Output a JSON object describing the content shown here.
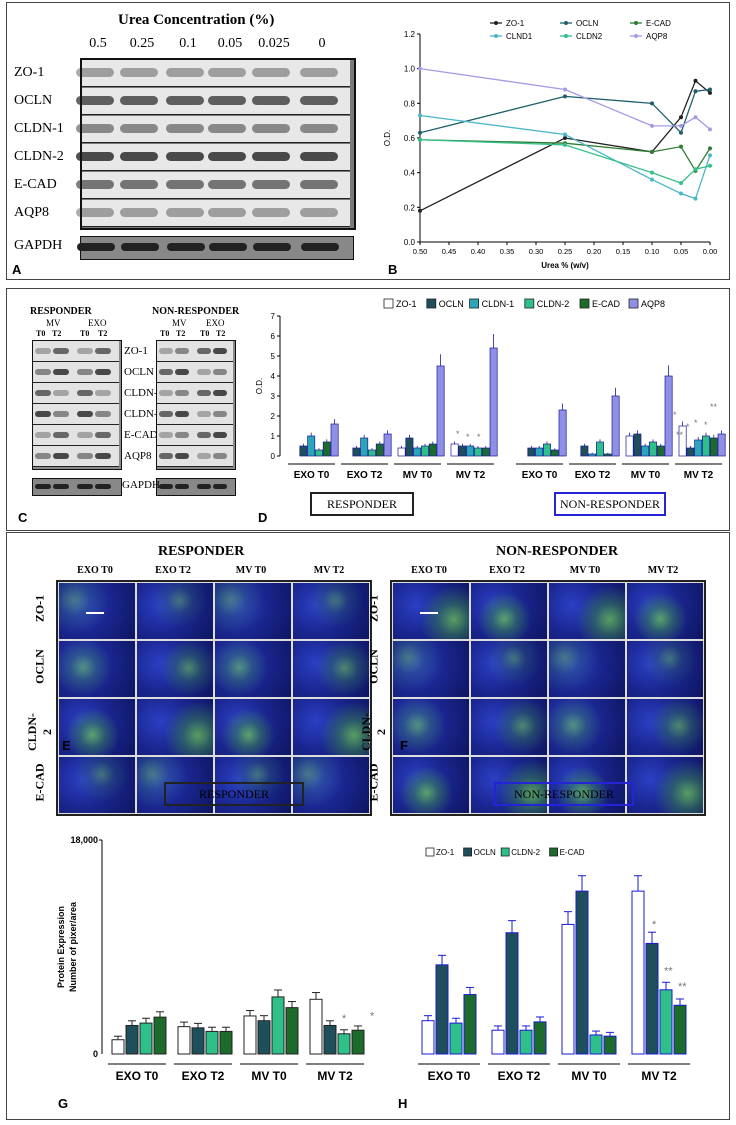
{
  "panels": {
    "A": "A",
    "B": "B",
    "C": "C",
    "D": "D",
    "E": "E",
    "F": "F",
    "G": "G",
    "H": "H"
  },
  "panelA": {
    "title": "Urea Concentration (%)",
    "concentrations": [
      "0.5",
      "0.25",
      "0.1",
      "0.05",
      "0.025",
      "0"
    ],
    "rows": [
      "ZO-1",
      "OCLN",
      "CLDN-1",
      "CLDN-2",
      "E-CAD",
      "AQP8"
    ],
    "loading": "GAPDH"
  },
  "panelB": {
    "chart_data": {
      "type": "line",
      "xlabel": "Urea % (w/v)",
      "ylabel": "O.D.",
      "xlim": [
        0.5,
        0.0
      ],
      "ylim": [
        0.0,
        1.2
      ],
      "xticks": [
        "0.50",
        "0.45",
        "0.40",
        "0.35",
        "0.30",
        "0.25",
        "0.20",
        "0.15",
        "0.10",
        "0.05",
        "0.00"
      ],
      "yticks": [
        "0.0",
        "0.2",
        "0.4",
        "0.6",
        "0.8",
        "1.0",
        "1.2"
      ],
      "x": [
        0.5,
        0.25,
        0.1,
        0.05,
        0.025,
        0.0
      ],
      "series": [
        {
          "name": "ZO-1",
          "color": "#222222",
          "values": [
            0.18,
            0.6,
            0.52,
            0.72,
            0.93,
            0.86
          ]
        },
        {
          "name": "OCLN",
          "color": "#1f5f6b",
          "values": [
            0.63,
            0.84,
            0.8,
            0.63,
            0.87,
            0.88
          ]
        },
        {
          "name": "E-CAD",
          "color": "#2e7d32",
          "values": [
            0.59,
            0.57,
            0.52,
            0.55,
            0.41,
            0.54
          ]
        },
        {
          "name": "CLND1",
          "color": "#4ab6c8",
          "values": [
            0.73,
            0.62,
            0.36,
            0.28,
            0.25,
            0.5
          ]
        },
        {
          "name": "CLDN2",
          "color": "#35c08a",
          "values": [
            0.59,
            0.56,
            0.4,
            0.34,
            0.42,
            0.44
          ]
        },
        {
          "name": "AQP8",
          "color": "#a59be6",
          "values": [
            1.0,
            0.88,
            0.67,
            0.67,
            0.72,
            0.65
          ]
        }
      ],
      "legend": "top"
    }
  },
  "panelC": {
    "responder": "RESPONDER",
    "nonresponder": "NON-RESPONDER",
    "mv": "MV",
    "exo": "EXO",
    "t0": "T0",
    "t2": "T2",
    "rows": [
      "ZO-1",
      "OCLN",
      "CLDN-1",
      "CLDN-2",
      "E-CAD",
      "AQP8"
    ],
    "loading": "GAPDH"
  },
  "panelD": {
    "chart_data": {
      "type": "bar",
      "ylabel": "O.D.",
      "ylim": [
        0,
        7
      ],
      "yticks": [
        "0",
        "1",
        "2",
        "3",
        "4",
        "5",
        "6",
        "7"
      ],
      "legend_items": [
        "ZO-1",
        "OCLN",
        "CLDN-1",
        "CLDN-2",
        "E-CAD",
        "AQP8"
      ],
      "colors": [
        "#ffffff",
        "#1f4f5a",
        "#2aa6b8",
        "#2fc08a",
        "#1c6b2a",
        "#8f8fe6"
      ],
      "groups": [
        "EXO T0",
        "EXO T2",
        "MV T0",
        "MV T2"
      ],
      "responder": [
        [
          0,
          0.5,
          1.0,
          0.3,
          0.7,
          1.6
        ],
        [
          0,
          0.4,
          0.9,
          0.3,
          0.6,
          1.1
        ],
        [
          0.4,
          0.9,
          0.4,
          0.5,
          0.6,
          4.5
        ],
        [
          0.6,
          0.5,
          0.5,
          0.4,
          0.4,
          5.4
        ]
      ],
      "nonresponder": [
        [
          0,
          0.4,
          0.4,
          0.6,
          0.3,
          2.3
        ],
        [
          0,
          0.5,
          0.1,
          0.7,
          0.1,
          3.0
        ],
        [
          1.0,
          1.1,
          0.5,
          0.7,
          0.5,
          4.0
        ],
        [
          1.5,
          0.4,
          0.8,
          1.0,
          0.9,
          1.1
        ]
      ],
      "responder_label": "RESPONDER",
      "nonresponder_label": "NON-RESPONDER",
      "stars_r": [
        "*",
        "*",
        "*"
      ],
      "stars_n": [
        "*",
        "**",
        "*",
        "*",
        "*",
        "**"
      ]
    }
  },
  "panelEF": {
    "responder": "RESPONDER",
    "nonresponder": "NON-RESPONDER",
    "cols": [
      "EXO T0",
      "EXO T2",
      "MV T0",
      "MV T2"
    ],
    "rows": [
      "ZO-1",
      "OCLN",
      "CLDN-2",
      "E-CAD"
    ]
  },
  "panelGH": {
    "chart_data": {
      "type": "bar",
      "ylabel1": "Protein Expression",
      "ylabel2": "Number of pixer/area",
      "ylim": [
        0,
        18000
      ],
      "ytop": "18,000",
      "yzero": "0",
      "legend_items": [
        "ZO-1",
        "OCLN",
        "CLDN-2",
        "E-CAD"
      ],
      "colors": [
        "#ffffff",
        "#1f4f5a",
        "#2fc08a",
        "#1c6b2a"
      ],
      "groups": [
        "EXO T0",
        "EXO T2",
        "MV T0",
        "MV T2"
      ],
      "responder": [
        [
          1200,
          2400,
          2600,
          3100
        ],
        [
          2300,
          2200,
          1900,
          1900
        ],
        [
          3200,
          2800,
          4800,
          3900
        ],
        [
          4600,
          2400,
          1700,
          2000
        ]
      ],
      "nonresponder": [
        [
          2800,
          7500,
          2600,
          5000
        ],
        [
          2000,
          10200,
          2000,
          2700
        ],
        [
          10900,
          13700,
          1600,
          1500
        ],
        [
          13700,
          9300,
          5400,
          4100
        ]
      ],
      "responder_label": "RESPONDER",
      "nonresponder_label": "NON-RESPONDER",
      "stars_r": [
        "*",
        "*"
      ],
      "stars_n": [
        "*",
        "**",
        "**"
      ]
    }
  }
}
